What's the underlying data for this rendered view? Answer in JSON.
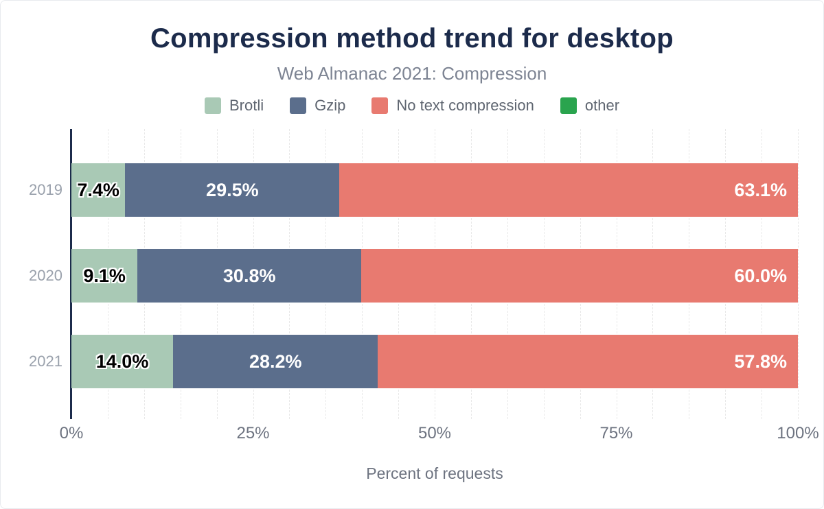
{
  "header": {
    "title": "Compression method trend for desktop",
    "subtitle": "Web Almanac 2021: Compression"
  },
  "colors": {
    "title": "#1c2b4b",
    "subtitle": "#7d8493",
    "axis_line": "#1c2b4b",
    "gridline": "#e8e8e8",
    "tick_label": "#6d7380",
    "category_label": "#9aa1ac",
    "legend_label": "#5e6570",
    "brotli": "#a9c9b5",
    "gzip": "#5b6e8c",
    "no_text_compression": "#e87a70",
    "other": "#2aa44e"
  },
  "legend": {
    "items": [
      {
        "label": "Brotli",
        "color": "#a9c9b5"
      },
      {
        "label": "Gzip",
        "color": "#5b6e8c"
      },
      {
        "label": "No text compression",
        "color": "#e87a70"
      },
      {
        "label": "other",
        "color": "#2aa44e"
      }
    ]
  },
  "chart_data": {
    "type": "bar",
    "orientation": "horizontal",
    "stacked": true,
    "title": "Compression method trend for desktop",
    "subtitle": "Web Almanac 2021: Compression",
    "categories": [
      "2019",
      "2020",
      "2021"
    ],
    "series": [
      {
        "name": "Brotli",
        "color": "#a9c9b5",
        "values": [
          7.4,
          9.1,
          14.0
        ],
        "label_style": "dark"
      },
      {
        "name": "Gzip",
        "color": "#5b6e8c",
        "values": [
          29.5,
          30.8,
          28.2
        ],
        "label_style": "light"
      },
      {
        "name": "No text compression",
        "color": "#e87a70",
        "values": [
          63.1,
          60.0,
          57.8
        ],
        "label_style": "light-right"
      },
      {
        "name": "other",
        "color": "#2aa44e",
        "values": [
          0,
          0,
          0
        ],
        "label_style": "none"
      }
    ],
    "value_label_format": "{value}%",
    "xlabel": "Percent of requests",
    "xlim": [
      0,
      100
    ],
    "x_ticks": [
      {
        "value": 0,
        "label": "0%"
      },
      {
        "value": 25,
        "label": "25%"
      },
      {
        "value": 50,
        "label": "50%"
      },
      {
        "value": 75,
        "label": "75%"
      },
      {
        "value": 100,
        "label": "100%"
      }
    ],
    "grid": {
      "axis": "x",
      "interval_pct": 5,
      "style": "dashed"
    },
    "legend_position": "top"
  }
}
